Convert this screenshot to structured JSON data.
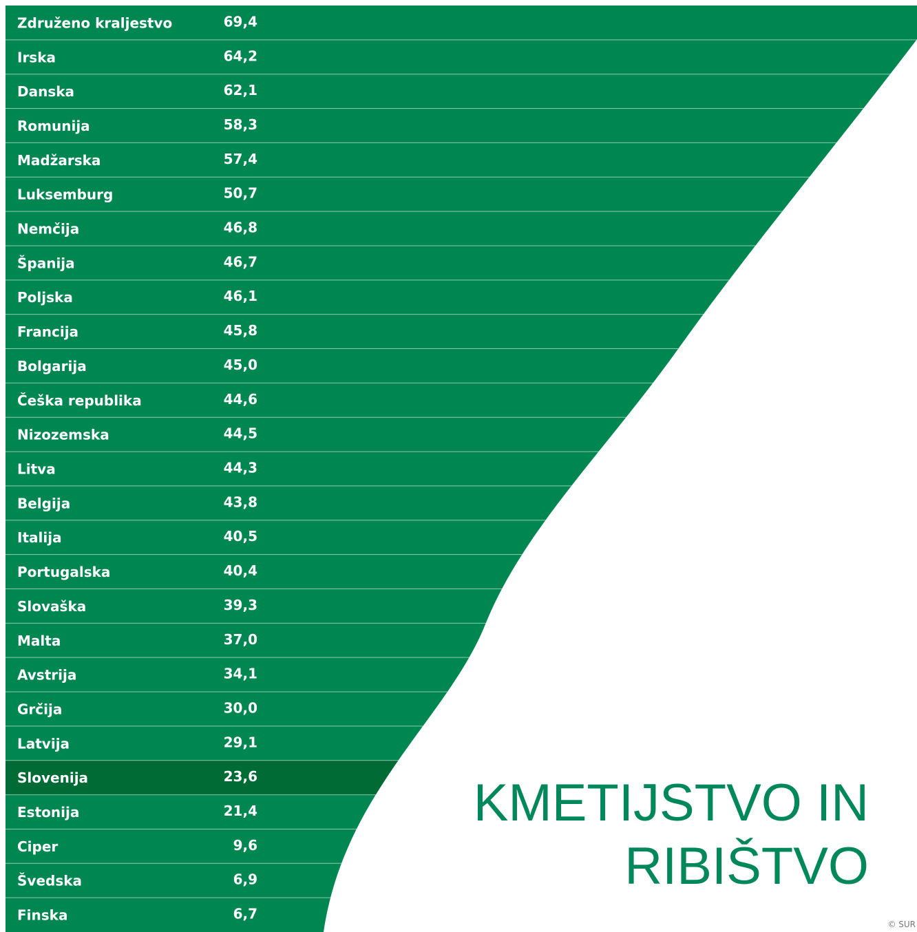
{
  "title": [
    "KMETIJSTVO IN",
    "RIBIŠTVO"
  ],
  "credit": "© SUR",
  "rows": [
    {
      "country": "Združeno kraljestvo",
      "value": "69,4"
    },
    {
      "country": "Irska",
      "value": "64,2"
    },
    {
      "country": "Danska",
      "value": "62,1"
    },
    {
      "country": "Romunija",
      "value": "58,3"
    },
    {
      "country": "Madžarska",
      "value": "57,4"
    },
    {
      "country": "Luksemburg",
      "value": "50,7"
    },
    {
      "country": "Nemčija",
      "value": "46,8"
    },
    {
      "country": "Španija",
      "value": "46,7"
    },
    {
      "country": "Poljska",
      "value": "46,1"
    },
    {
      "country": "Francija",
      "value": "45,8"
    },
    {
      "country": "Bolgarija",
      "value": "45,0"
    },
    {
      "country": "Češka republika",
      "value": "44,6"
    },
    {
      "country": "Nizozemska",
      "value": "44,5"
    },
    {
      "country": "Litva",
      "value": "44,3"
    },
    {
      "country": "Belgija",
      "value": "43,8"
    },
    {
      "country": "Italija",
      "value": "40,5"
    },
    {
      "country": "Portugalska",
      "value": "40,4"
    },
    {
      "country": "Slovaška",
      "value": "39,3"
    },
    {
      "country": "Malta",
      "value": "37,0"
    },
    {
      "country": "Avstrija",
      "value": "34,1"
    },
    {
      "country": "Grčija",
      "value": "30,0"
    },
    {
      "country": "Latvija",
      "value": "29,1"
    },
    {
      "country": "Slovenija",
      "value": "23,6"
    },
    {
      "country": "Estonija",
      "value": "21,4"
    },
    {
      "country": "Ciper",
      "value": "9,6"
    },
    {
      "country": "Švedska",
      "value": "6,9"
    },
    {
      "country": "Finska",
      "value": "6,7"
    }
  ]
}
